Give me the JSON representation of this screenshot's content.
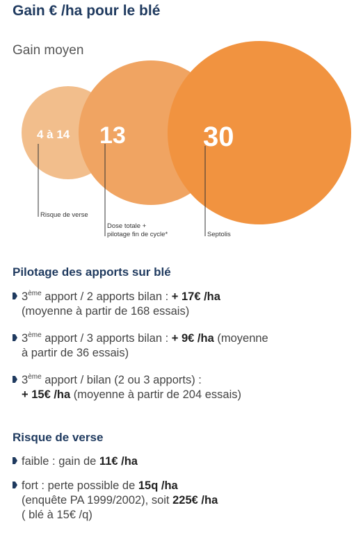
{
  "title": "Gain € /ha pour le blé",
  "subtitle": "Gain moyen",
  "circles": [
    {
      "value": "4 à 14",
      "label": "Risque de verse",
      "color": "#f2be8c"
    },
    {
      "value": "13",
      "label_line1": "Dose totale +",
      "label_line2": "pilotage fin de cycle*",
      "color": "#f0a462"
    },
    {
      "value": "30",
      "label": "Septolis",
      "color": "#f19340"
    }
  ],
  "section1": {
    "heading": "Pilotage des apports sur blé",
    "items": [
      {
        "sup": "ème",
        "pre": "3",
        "line1_text": " apport / 2 apports bilan : ",
        "line1_bold": "+ 17€ /ha",
        "line2": "(moyenne à partir de 168 essais)"
      },
      {
        "sup": "ème",
        "pre": "3",
        "line1_text": " apport / 3 apports bilan : ",
        "line1_bold": "+ 9€ /ha",
        "line1_after": " (moyenne",
        "line2": "à partir de 36 essais)"
      },
      {
        "sup": "ème",
        "pre": "3",
        "line1_text": " apport / bilan (2 ou 3 apports) :",
        "line2_bold": "+ 15€ /ha",
        "line2": " (moyenne à partir de 204 essais)"
      }
    ]
  },
  "section2": {
    "heading": "Risque de verse",
    "items": [
      {
        "text": "faible : gain de ",
        "bold": "11€ /ha"
      },
      {
        "line1_text": "fort : perte possible de ",
        "line1_bold": "15q /ha",
        "line2_text": "(enquête PA 1999/2002), soit ",
        "line2_bold": "225€ /ha",
        "line3": "( blé à 15€ /q)"
      }
    ]
  }
}
